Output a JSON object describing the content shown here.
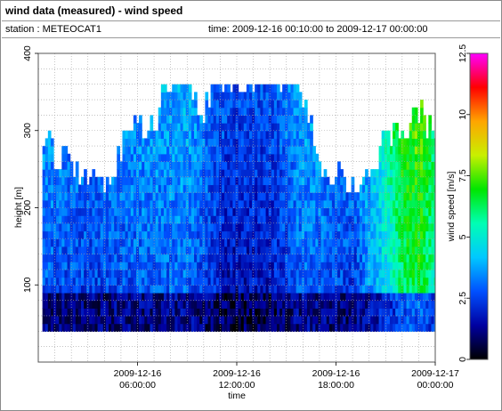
{
  "header": {
    "title": "wind data (measured) - wind speed",
    "station": "station : METEOCAT1",
    "time_range": "time: 2009-12-16 00:10:00 to 2009-12-17 00:00:00"
  },
  "chart_data": {
    "type": "heatmap",
    "title": "wind data (measured) - wind speed",
    "xlabel": "time",
    "ylabel": "height [m]",
    "colorbar_label": "wind speed [m/s]",
    "x_ticks": [
      {
        "hours": 6,
        "line1": "2009-12-16",
        "line2": "06:00:00"
      },
      {
        "hours": 12,
        "line1": "2009-12-16",
        "line2": "12:00:00"
      },
      {
        "hours": 18,
        "line1": "2009-12-16",
        "line2": "18:00:00"
      },
      {
        "hours": 24,
        "line1": "2009-12-17",
        "line2": "00:00:00"
      }
    ],
    "xlim_hours": [
      0,
      24
    ],
    "ylim": [
      0,
      400
    ],
    "y_ticks": [
      100,
      200,
      300,
      400
    ],
    "colorbar_ticks": [
      "0",
      "2.5",
      "5",
      "7.5",
      "10",
      "12.5"
    ],
    "colorbar_range": [
      0,
      12.5
    ],
    "colormap_stops": [
      "#000000",
      "#0000a0",
      "#0050ff",
      "#00c8ff",
      "#00ffb4",
      "#00e600",
      "#c8f000",
      "#ffa500",
      "#ff0000",
      "#ff00ff"
    ],
    "grid": true,
    "cell_width_hours": 0.1667,
    "cell_height_m": 10,
    "lowest_height_m": 40,
    "max_height_m": 360,
    "approx_top_height_m": [
      {
        "hour": 0.0,
        "height": 250
      },
      {
        "hour": 0.5,
        "height": 300
      },
      {
        "hour": 1.0,
        "height": 260
      },
      {
        "hour": 2.0,
        "height": 250
      },
      {
        "hour": 3.0,
        "height": 240
      },
      {
        "hour": 4.0,
        "height": 220
      },
      {
        "hour": 4.5,
        "height": 250
      },
      {
        "hour": 5.0,
        "height": 280
      },
      {
        "hour": 6.0,
        "height": 300
      },
      {
        "hour": 7.0,
        "height": 300
      },
      {
        "hour": 7.5,
        "height": 360
      },
      {
        "hour": 9.0,
        "height": 360
      },
      {
        "hour": 10.0,
        "height": 320
      },
      {
        "hour": 10.5,
        "height": 360
      },
      {
        "hour": 15.0,
        "height": 360
      },
      {
        "hour": 16.0,
        "height": 330
      },
      {
        "hour": 16.5,
        "height": 300
      },
      {
        "hour": 17.0,
        "height": 250
      },
      {
        "hour": 18.0,
        "height": 240
      },
      {
        "hour": 19.0,
        "height": 230
      },
      {
        "hour": 20.0,
        "height": 230
      },
      {
        "hour": 21.0,
        "height": 290
      },
      {
        "hour": 22.0,
        "height": 290
      },
      {
        "hour": 22.5,
        "height": 300
      },
      {
        "hour": 23.0,
        "height": 320
      },
      {
        "hour": 24.0,
        "height": 280
      }
    ],
    "approx_speed_ms": [
      {
        "hour": 0,
        "speed": 2.6
      },
      {
        "hour": 3,
        "speed": 2.3
      },
      {
        "hour": 6,
        "speed": 2.6
      },
      {
        "hour": 9,
        "speed": 2.8
      },
      {
        "hour": 11.5,
        "speed": 1.4
      },
      {
        "hour": 14,
        "speed": 1.6
      },
      {
        "hour": 16,
        "speed": 2.8
      },
      {
        "hour": 19,
        "speed": 2.2
      },
      {
        "hour": 21,
        "speed": 4.5
      },
      {
        "hour": 22,
        "speed": 6.0
      },
      {
        "hour": 23,
        "speed": 6.5
      },
      {
        "hour": 24,
        "speed": 5.0
      }
    ]
  }
}
